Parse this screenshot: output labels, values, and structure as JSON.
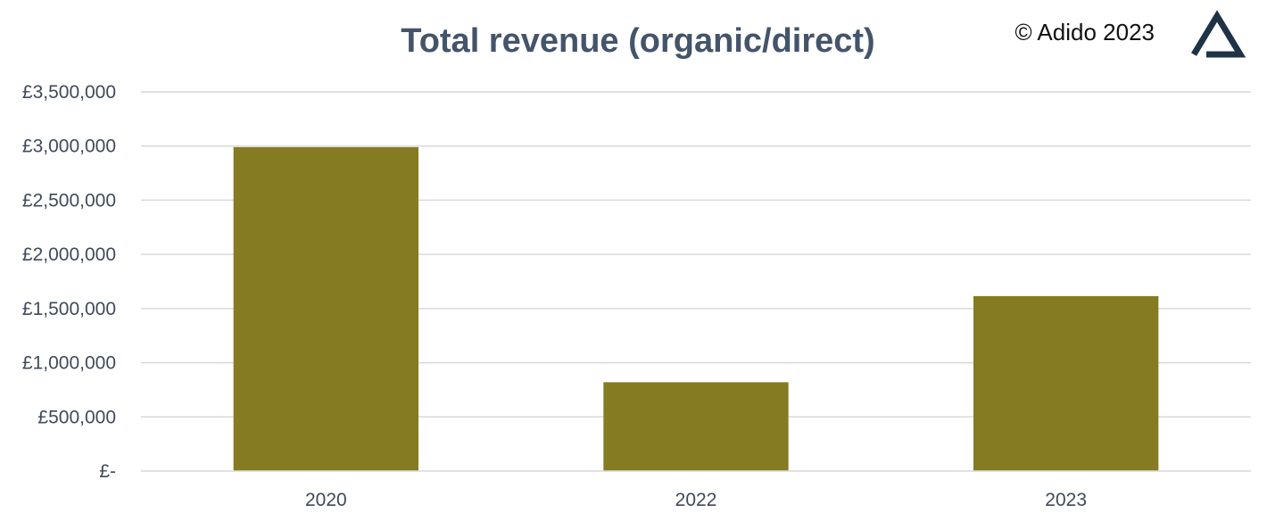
{
  "brand": {
    "copyright": "© Adido 2023",
    "logo_icon": "adido-triangle-logo",
    "logo_color": "#1f3347"
  },
  "chart_data": {
    "type": "bar",
    "title": "Total revenue (organic/direct)",
    "categories": [
      "2020",
      "2022",
      "2023"
    ],
    "values": [
      2990000,
      820000,
      1615000
    ],
    "y_tick_values": [
      0,
      500000,
      1000000,
      1500000,
      2000000,
      2500000,
      3000000,
      3500000
    ],
    "y_tick_labels": [
      "£-",
      "£500,000",
      "£1,000,000",
      "£1,500,000",
      "£2,000,000",
      "£2,500,000",
      "£3,000,000",
      "£3,500,000"
    ],
    "ylim": [
      0,
      3500000
    ],
    "grid": true,
    "legend": "none",
    "bar_color": "#857b22",
    "title_color": "#44546a",
    "xlabel": "",
    "ylabel": ""
  }
}
